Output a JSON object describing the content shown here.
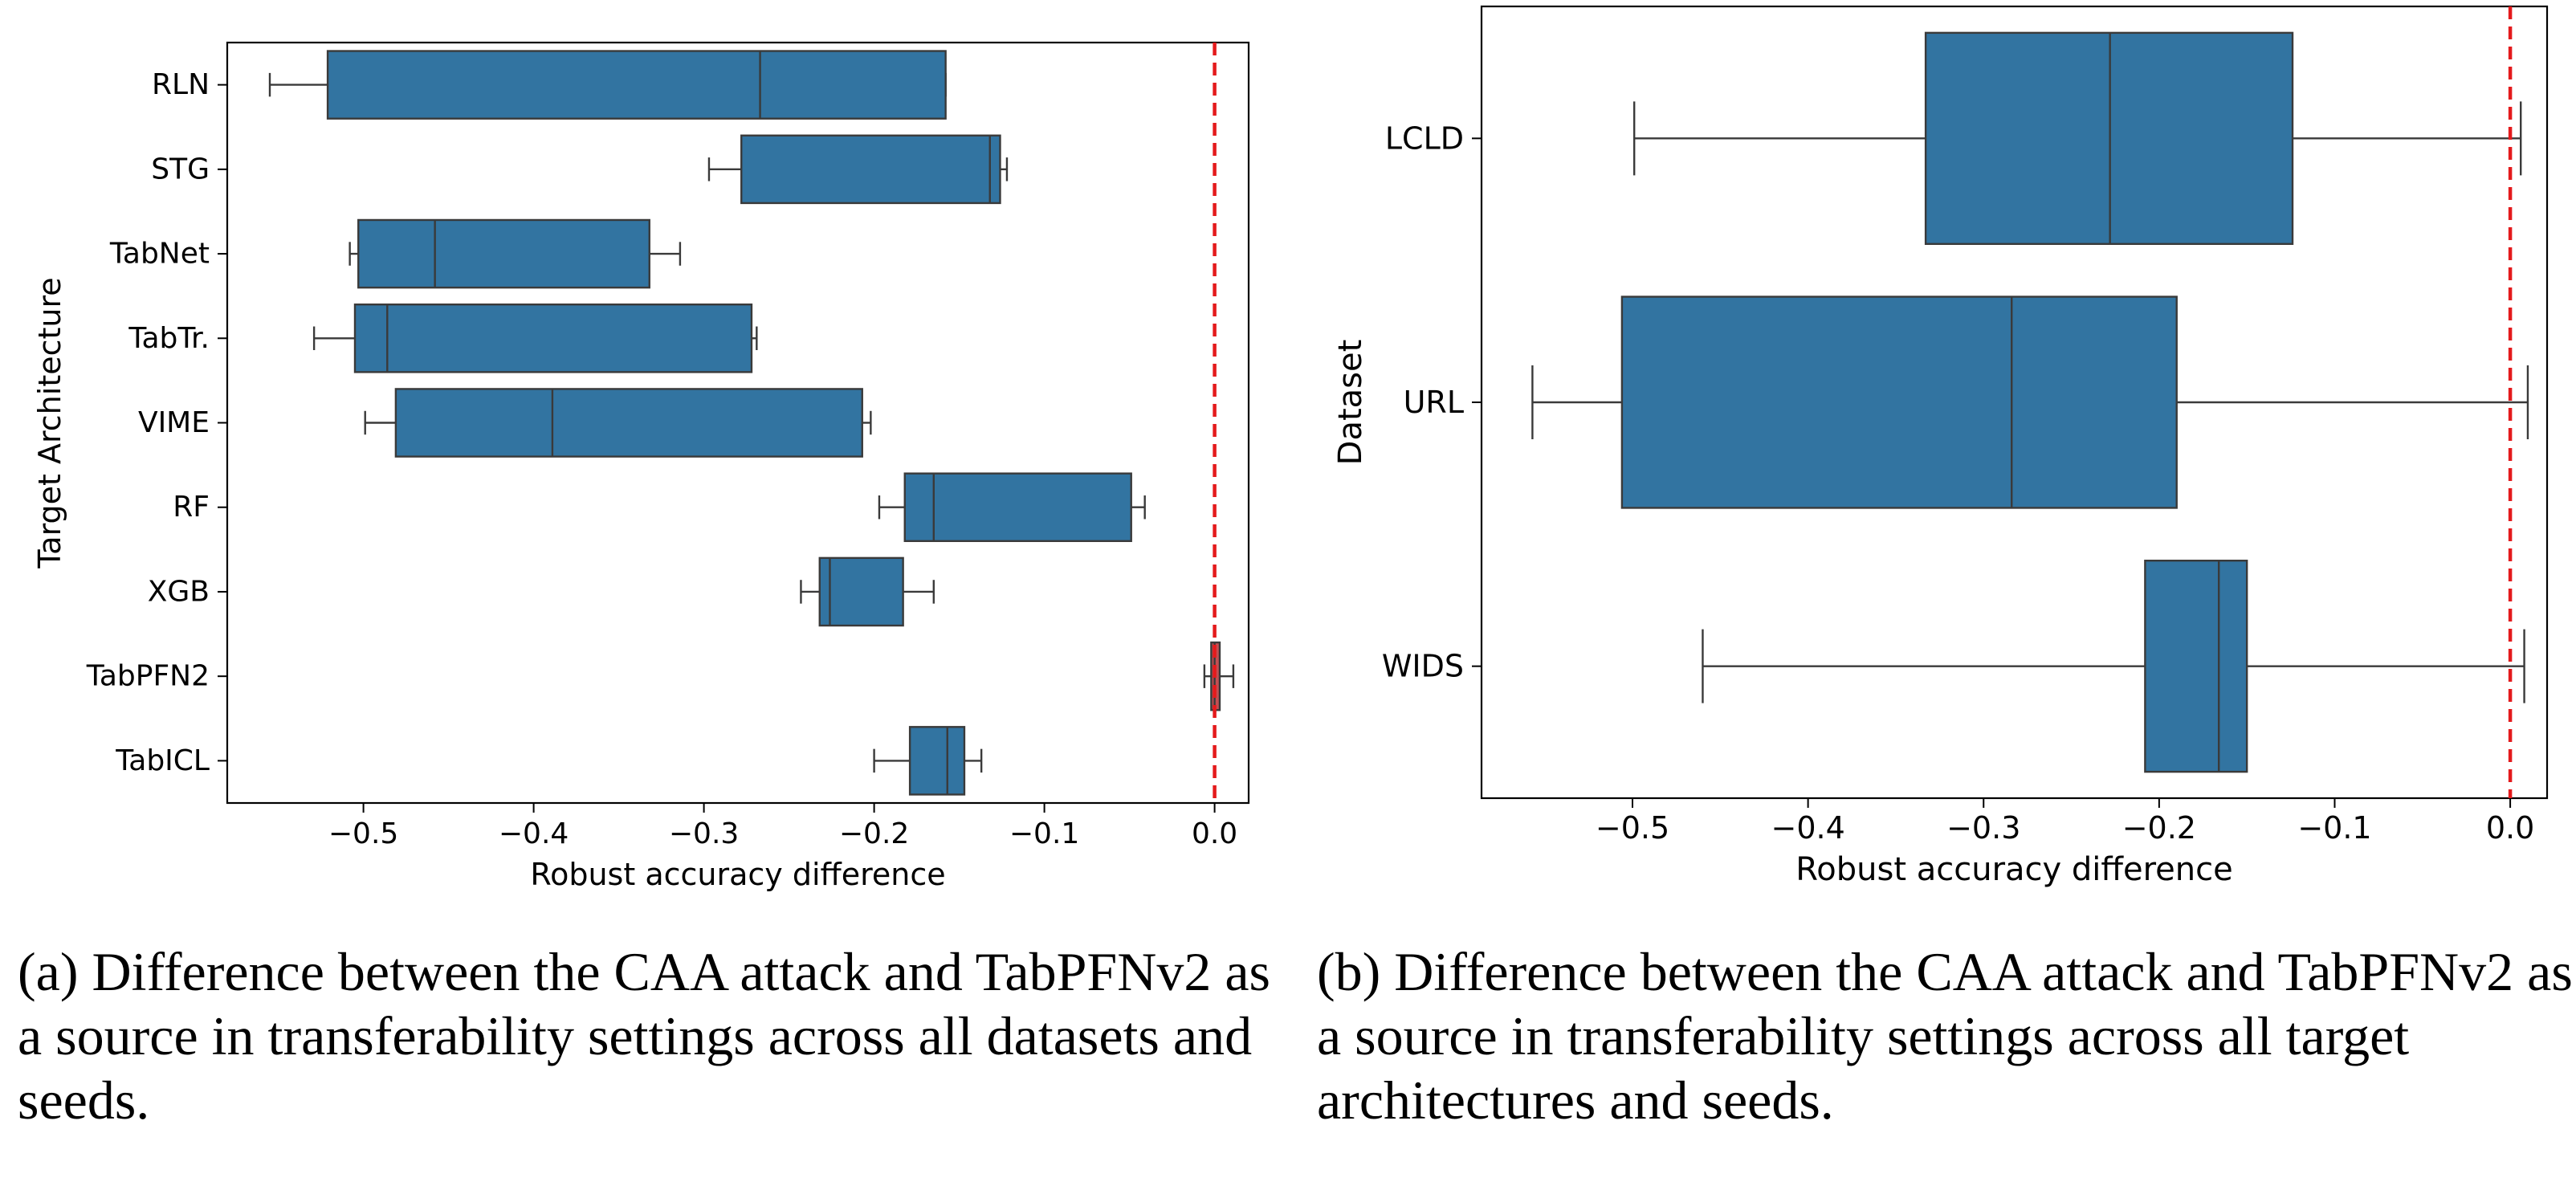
{
  "chart_data": [
    {
      "type": "box",
      "orientation": "horizontal",
      "panel": "a",
      "title": "",
      "xlabel": "Robust accuracy difference",
      "ylabel": "Target Architecture",
      "xlim": [
        -0.58,
        0.02
      ],
      "xticks": [
        -0.5,
        -0.4,
        -0.3,
        -0.2,
        -0.1,
        0.0
      ],
      "xtick_labels": [
        "−0.5",
        "−0.4",
        "−0.3",
        "−0.2",
        "−0.1",
        "0.0"
      ],
      "reference_line": {
        "x": 0.0,
        "color": "#e41a1c",
        "style": "dashed"
      },
      "box_color": "#3274a1",
      "categories": [
        "RLN",
        "STG",
        "TabNet",
        "TabTr.",
        "VIME",
        "RF",
        "XGB",
        "TabPFN2",
        "TabICL"
      ],
      "boxes": [
        {
          "label": "RLN",
          "whisker_low": -0.555,
          "q1": -0.521,
          "median": -0.267,
          "q3": -0.158,
          "whisker_high": -0.158
        },
        {
          "label": "STG",
          "whisker_low": -0.297,
          "q1": -0.278,
          "median": -0.132,
          "q3": -0.126,
          "whisker_high": -0.122
        },
        {
          "label": "TabNet",
          "whisker_low": -0.508,
          "q1": -0.503,
          "median": -0.458,
          "q3": -0.332,
          "whisker_high": -0.314
        },
        {
          "label": "TabTr.",
          "whisker_low": -0.529,
          "q1": -0.505,
          "median": -0.486,
          "q3": -0.272,
          "whisker_high": -0.269
        },
        {
          "label": "VIME",
          "whisker_low": -0.499,
          "q1": -0.481,
          "median": -0.389,
          "q3": -0.207,
          "whisker_high": -0.202
        },
        {
          "label": "RF",
          "whisker_low": -0.197,
          "q1": -0.182,
          "median": -0.165,
          "q3": -0.049,
          "whisker_high": -0.041
        },
        {
          "label": "XGB",
          "whisker_low": -0.243,
          "q1": -0.232,
          "median": -0.226,
          "q3": -0.183,
          "whisker_high": -0.165
        },
        {
          "label": "TabPFN2",
          "whisker_low": -0.006,
          "q1": -0.002,
          "median": 0.0,
          "q3": 0.003,
          "whisker_high": 0.011,
          "color": "#c44e52"
        },
        {
          "label": "TabICL",
          "whisker_low": -0.2,
          "q1": -0.179,
          "median": -0.157,
          "q3": -0.147,
          "whisker_high": -0.137
        }
      ]
    },
    {
      "type": "box",
      "orientation": "horizontal",
      "panel": "b",
      "title": "",
      "xlabel": "Robust accuracy difference",
      "ylabel": "Dataset",
      "xlim": [
        -0.586,
        0.021
      ],
      "xticks": [
        -0.5,
        -0.4,
        -0.3,
        -0.2,
        -0.1,
        0.0
      ],
      "xtick_labels": [
        "−0.5",
        "−0.4",
        "−0.3",
        "−0.2",
        "−0.1",
        "0.0"
      ],
      "reference_line": {
        "x": 0.0,
        "color": "#e41a1c",
        "style": "dashed"
      },
      "box_color": "#3274a1",
      "categories": [
        "LCLD",
        "URL",
        "WIDS"
      ],
      "boxes": [
        {
          "label": "LCLD",
          "whisker_low": -0.499,
          "q1": -0.333,
          "median": -0.228,
          "q3": -0.124,
          "whisker_high": 0.006
        },
        {
          "label": "URL",
          "whisker_low": -0.557,
          "q1": -0.506,
          "median": -0.284,
          "q3": -0.19,
          "whisker_high": 0.01
        },
        {
          "label": "WIDS",
          "whisker_low": -0.46,
          "q1": -0.208,
          "median": -0.166,
          "q3": -0.15,
          "whisker_high": 0.008
        }
      ]
    }
  ],
  "captions": {
    "a": "(a) Difference between the CAA attack and TabPFNv2 as a source in transferability settings across all datasets and seeds.",
    "b": "(b) Difference between the CAA attack and TabPFNv2 as a source in transferability settings across all target architectures and seeds."
  }
}
